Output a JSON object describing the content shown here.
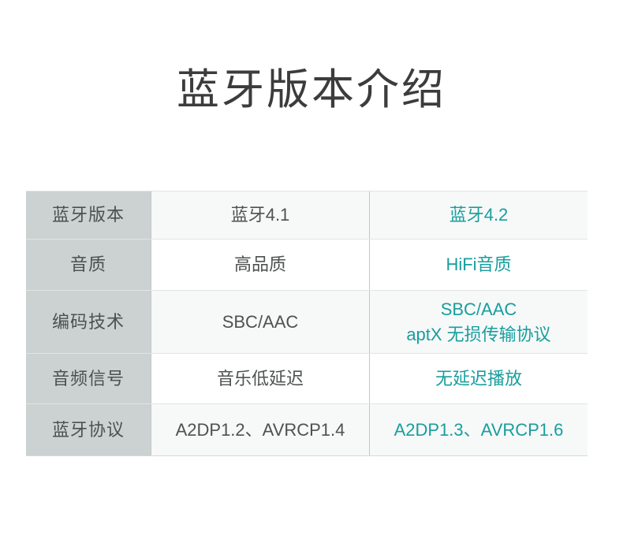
{
  "page_title": "蓝牙版本介绍",
  "colors": {
    "accent_teal": "#189e9e",
    "label_column_bg": "#cbd2d1",
    "alt_row_bg": "#f7f8f8",
    "title_text": "#3c3c3c",
    "body_text": "#4e5251",
    "grid_line": "#e2e4e3"
  },
  "table": {
    "rows": [
      {
        "label": "蓝牙版本",
        "old": "蓝牙4.1",
        "new": "蓝牙4.2"
      },
      {
        "label": "音质",
        "old": "高品质",
        "new": "HiFi音质"
      },
      {
        "label": "编码技术",
        "old": "SBC/AAC",
        "new": [
          "SBC/AAC",
          "aptX 无损传输协议"
        ]
      },
      {
        "label": "音频信号",
        "old": "音乐低延迟",
        "new": "无延迟播放"
      },
      {
        "label": "蓝牙协议",
        "old": "A2DP1.2、AVRCP1.4",
        "new": "A2DP1.3、AVRCP1.6"
      }
    ]
  }
}
